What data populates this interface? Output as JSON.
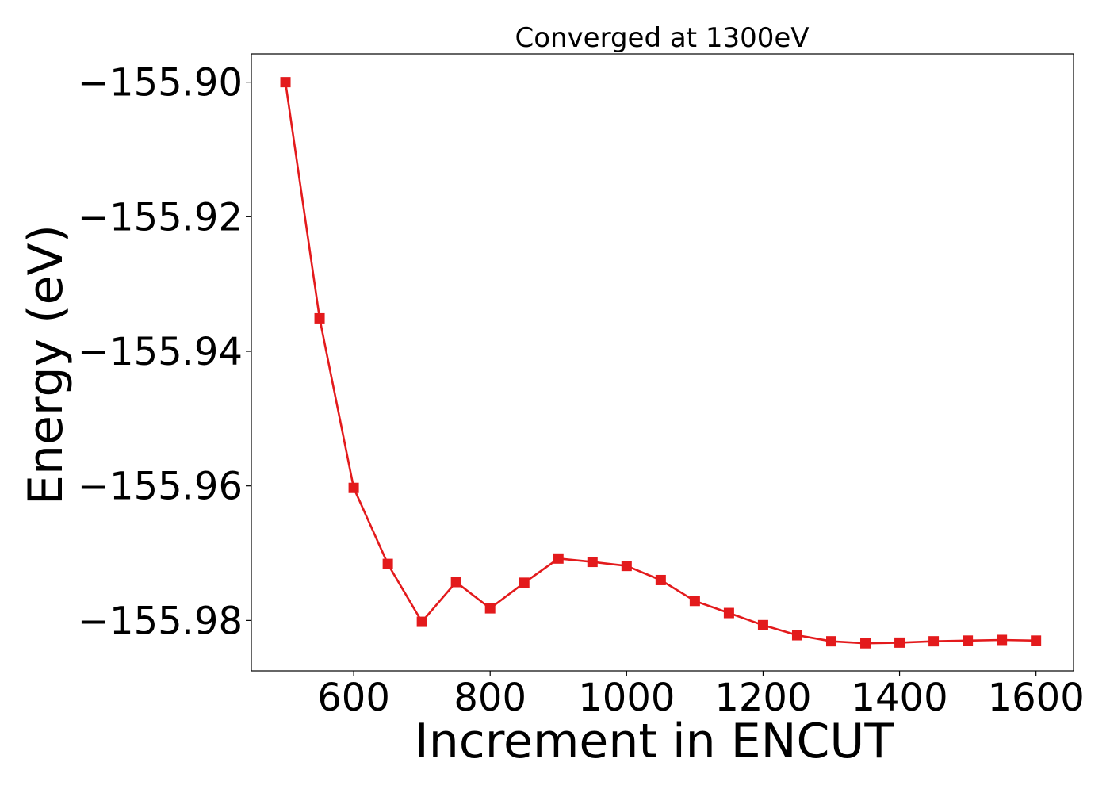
{
  "chart_data": {
    "type": "line",
    "title": "Converged at 1300eV",
    "xlabel": "Increment in ENCUT",
    "ylabel": "Energy (eV)",
    "xlim": [
      450,
      1655
    ],
    "ylim": [
      -155.9875,
      -155.8958
    ],
    "xticks": [
      600,
      800,
      1000,
      1200,
      1400,
      1600
    ],
    "xtick_labels": [
      "600",
      "800",
      "1000",
      "1200",
      "1400",
      "1600"
    ],
    "yticks": [
      -155.9,
      -155.92,
      -155.94,
      -155.96,
      -155.98
    ],
    "ytick_labels": [
      "−155.90",
      "−155.92",
      "−155.94",
      "−155.96",
      "−155.98"
    ],
    "grid": false,
    "series": [
      {
        "color": "#e31a1c",
        "marker": "square",
        "x": [
          500,
          550,
          600,
          650,
          700,
          750,
          800,
          850,
          900,
          950,
          1000,
          1050,
          1100,
          1150,
          1200,
          1250,
          1300,
          1350,
          1400,
          1450,
          1500,
          1550,
          1600
        ],
        "y": [
          -155.9,
          -155.9351,
          -155.9603,
          -155.9716,
          -155.9802,
          -155.9743,
          -155.9782,
          -155.9744,
          -155.9708,
          -155.9713,
          -155.9719,
          -155.974,
          -155.9771,
          -155.9789,
          -155.9807,
          -155.9822,
          -155.9831,
          -155.9834,
          -155.9833,
          -155.9831,
          -155.983,
          -155.9829,
          -155.983
        ]
      }
    ]
  }
}
